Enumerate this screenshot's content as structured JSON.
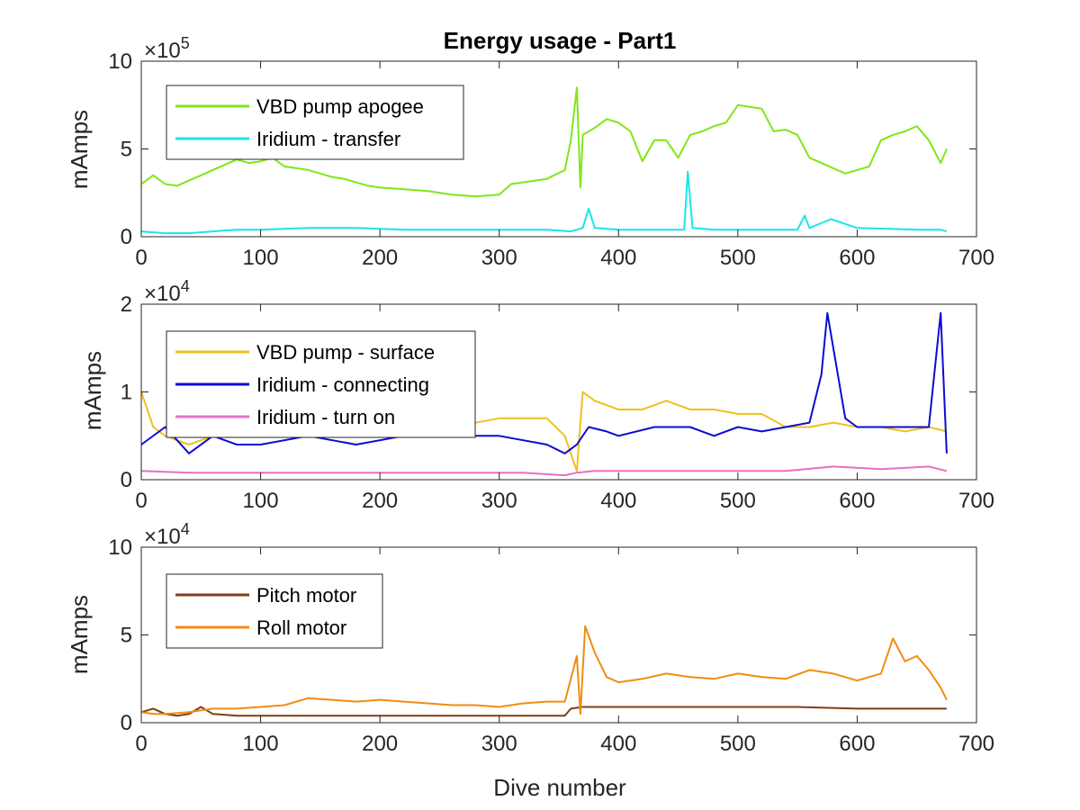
{
  "chart_data": [
    {
      "type": "line",
      "title": "Energy usage - Part1",
      "ylabel": "mAmps",
      "xlabel": "",
      "xlim": [
        0,
        700
      ],
      "ylim": [
        0,
        10
      ],
      "yexponent": "5",
      "xticks": [
        "0",
        "100",
        "200",
        "300",
        "400",
        "500",
        "600",
        "700"
      ],
      "yticks": [
        "0",
        "5",
        "10"
      ],
      "legend_position": "top-left",
      "series": [
        {
          "name": "VBD pump apogee",
          "color": "#80e619",
          "x": [
            0,
            10,
            20,
            30,
            40,
            50,
            60,
            70,
            80,
            90,
            100,
            110,
            120,
            130,
            140,
            150,
            160,
            170,
            180,
            190,
            200,
            220,
            240,
            260,
            280,
            300,
            310,
            320,
            340,
            355,
            360,
            365,
            368,
            370,
            375,
            380,
            390,
            400,
            410,
            420,
            430,
            440,
            450,
            460,
            470,
            480,
            490,
            500,
            510,
            520,
            530,
            540,
            550,
            560,
            570,
            580,
            590,
            600,
            610,
            620,
            630,
            640,
            650,
            660,
            670,
            675
          ],
          "y": [
            3.0,
            3.5,
            3.0,
            2.9,
            3.2,
            3.5,
            3.8,
            4.1,
            4.4,
            4.2,
            4.3,
            4.5,
            4.0,
            3.9,
            3.8,
            3.6,
            3.4,
            3.3,
            3.1,
            2.9,
            2.8,
            2.7,
            2.6,
            2.4,
            2.3,
            2.4,
            3.0,
            3.1,
            3.3,
            3.8,
            5.5,
            8.5,
            2.8,
            5.8,
            6.0,
            6.2,
            6.7,
            6.5,
            6.0,
            4.3,
            5.5,
            5.5,
            4.5,
            5.8,
            6.0,
            6.3,
            6.5,
            7.5,
            7.4,
            7.3,
            6.0,
            6.1,
            5.8,
            4.5,
            4.2,
            3.9,
            3.6,
            3.8,
            4.0,
            5.5,
            5.8,
            6.0,
            6.3,
            5.5,
            4.2,
            5.0
          ]
        },
        {
          "name": "Iridium - transfer",
          "color": "#19e6e6",
          "x": [
            0,
            20,
            40,
            60,
            80,
            100,
            140,
            180,
            220,
            260,
            300,
            340,
            360,
            370,
            375,
            380,
            400,
            440,
            455,
            458,
            462,
            480,
            500,
            550,
            556,
            560,
            578,
            600,
            650,
            670,
            675
          ],
          "y": [
            0.3,
            0.2,
            0.2,
            0.3,
            0.4,
            0.4,
            0.5,
            0.5,
            0.4,
            0.4,
            0.4,
            0.4,
            0.3,
            0.5,
            1.6,
            0.5,
            0.4,
            0.4,
            0.4,
            3.7,
            0.5,
            0.4,
            0.4,
            0.4,
            1.2,
            0.5,
            1.0,
            0.5,
            0.4,
            0.4,
            0.3
          ]
        }
      ]
    },
    {
      "type": "line",
      "title": "",
      "ylabel": "mAmps",
      "xlabel": "",
      "xlim": [
        0,
        700
      ],
      "ylim": [
        0,
        2
      ],
      "yexponent": "4",
      "xticks": [
        "0",
        "100",
        "200",
        "300",
        "400",
        "500",
        "600",
        "700"
      ],
      "yticks": [
        "0",
        "1",
        "2"
      ],
      "legend_position": "top-left",
      "series": [
        {
          "name": "VBD pump - surface",
          "color": "#edc21c",
          "x": [
            0,
            10,
            20,
            40,
            60,
            80,
            100,
            140,
            180,
            220,
            260,
            300,
            340,
            355,
            365,
            370,
            380,
            400,
            420,
            440,
            460,
            480,
            500,
            520,
            540,
            560,
            580,
            600,
            620,
            640,
            660,
            675
          ],
          "y": [
            1.0,
            0.6,
            0.5,
            0.4,
            0.5,
            0.5,
            0.6,
            0.6,
            0.7,
            0.6,
            0.6,
            0.7,
            0.7,
            0.5,
            0.1,
            1.0,
            0.9,
            0.8,
            0.8,
            0.9,
            0.8,
            0.8,
            0.75,
            0.75,
            0.6,
            0.6,
            0.65,
            0.6,
            0.6,
            0.55,
            0.6,
            0.55
          ]
        },
        {
          "name": "Iridium - connecting",
          "color": "#0c0cd0",
          "x": [
            0,
            20,
            40,
            60,
            80,
            100,
            140,
            180,
            220,
            260,
            300,
            340,
            355,
            365,
            375,
            390,
            400,
            430,
            460,
            480,
            500,
            520,
            540,
            560,
            570,
            575,
            590,
            600,
            620,
            640,
            660,
            670,
            675
          ],
          "y": [
            0.4,
            0.6,
            0.3,
            0.5,
            0.4,
            0.4,
            0.5,
            0.4,
            0.5,
            0.5,
            0.5,
            0.4,
            0.3,
            0.4,
            0.6,
            0.55,
            0.5,
            0.6,
            0.6,
            0.5,
            0.6,
            0.55,
            0.6,
            0.65,
            1.2,
            1.9,
            0.7,
            0.6,
            0.6,
            0.6,
            0.6,
            1.9,
            0.3
          ]
        },
        {
          "name": "Iridium - turn on",
          "color": "#e86fc3",
          "x": [
            0,
            40,
            80,
            120,
            160,
            200,
            240,
            280,
            320,
            355,
            365,
            380,
            420,
            460,
            500,
            540,
            580,
            620,
            660,
            675
          ],
          "y": [
            0.1,
            0.08,
            0.08,
            0.08,
            0.08,
            0.08,
            0.08,
            0.08,
            0.08,
            0.05,
            0.08,
            0.1,
            0.1,
            0.1,
            0.1,
            0.1,
            0.15,
            0.12,
            0.15,
            0.1
          ]
        }
      ]
    },
    {
      "type": "line",
      "title": "",
      "ylabel": "mAmps",
      "xlabel": "Dive number",
      "xlim": [
        0,
        700
      ],
      "ylim": [
        0,
        10
      ],
      "yexponent": "4",
      "xticks": [
        "0",
        "100",
        "200",
        "300",
        "400",
        "500",
        "600",
        "700"
      ],
      "yticks": [
        "0",
        "5",
        "10"
      ],
      "legend_position": "top-left",
      "series": [
        {
          "name": "Pitch motor",
          "color": "#7f3f14",
          "x": [
            0,
            10,
            20,
            30,
            40,
            50,
            60,
            80,
            100,
            140,
            180,
            220,
            260,
            300,
            340,
            355,
            360,
            370,
            380,
            400,
            450,
            500,
            550,
            600,
            650,
            675
          ],
          "y": [
            0.6,
            0.8,
            0.5,
            0.4,
            0.5,
            0.9,
            0.5,
            0.4,
            0.4,
            0.4,
            0.4,
            0.4,
            0.4,
            0.4,
            0.4,
            0.4,
            0.8,
            0.9,
            0.9,
            0.9,
            0.9,
            0.9,
            0.9,
            0.8,
            0.8,
            0.8
          ]
        },
        {
          "name": "Roll motor",
          "color": "#f08c12",
          "x": [
            0,
            10,
            20,
            40,
            60,
            80,
            100,
            120,
            140,
            160,
            180,
            200,
            220,
            240,
            260,
            280,
            300,
            320,
            340,
            355,
            360,
            365,
            368,
            372,
            380,
            390,
            400,
            420,
            440,
            460,
            480,
            500,
            520,
            540,
            560,
            580,
            600,
            620,
            630,
            640,
            650,
            660,
            670,
            675
          ],
          "y": [
            0.6,
            0.5,
            0.5,
            0.6,
            0.8,
            0.8,
            0.9,
            1.0,
            1.4,
            1.3,
            1.2,
            1.3,
            1.2,
            1.1,
            1.0,
            1.0,
            0.9,
            1.1,
            1.2,
            1.2,
            2.5,
            3.8,
            0.5,
            5.5,
            4.0,
            2.6,
            2.3,
            2.5,
            2.8,
            2.6,
            2.5,
            2.8,
            2.6,
            2.5,
            3.0,
            2.8,
            2.4,
            2.8,
            4.8,
            3.5,
            3.8,
            3.0,
            2.0,
            1.3
          ]
        }
      ]
    }
  ]
}
